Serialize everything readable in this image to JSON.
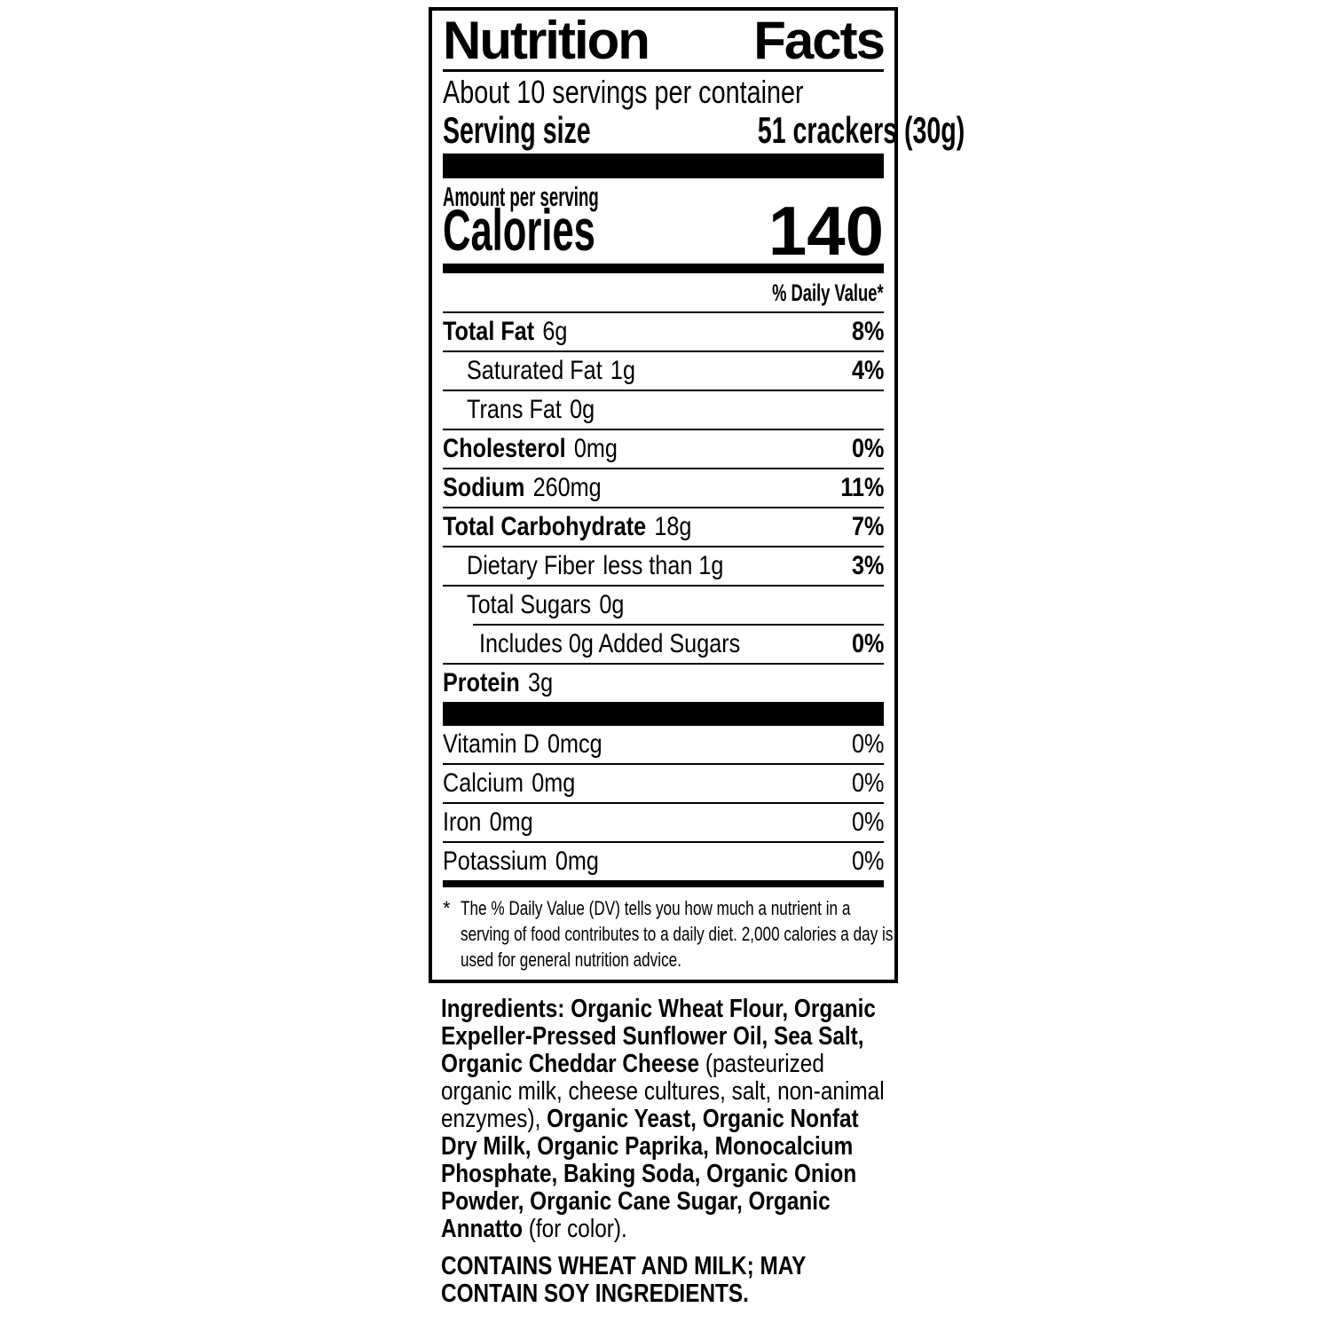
{
  "label": {
    "title_word1": "Nutrition",
    "title_word2": "Facts",
    "servings_per_container": "About 10 servings per container",
    "serving_size_label": "Serving size",
    "serving_size_value": "51 crackers (30g)",
    "amount_per_serving": "Amount per serving",
    "calories_label": "Calories",
    "calories_value": "140",
    "daily_value_header": "% Daily Value*",
    "nutrients": [
      {
        "name": "Total Fat",
        "amount": "6g",
        "dv": "8%",
        "bold": true,
        "indent": 0
      },
      {
        "name": "Saturated Fat",
        "amount": "1g",
        "dv": "4%",
        "bold": false,
        "indent": 1
      },
      {
        "name": "Trans Fat",
        "amount": "0g",
        "dv": "",
        "bold": false,
        "indent": 1
      },
      {
        "name": "Cholesterol",
        "amount": "0mg",
        "dv": "0%",
        "bold": true,
        "indent": 0
      },
      {
        "name": "Sodium",
        "amount": "260mg",
        "dv": "11%",
        "bold": true,
        "indent": 0
      },
      {
        "name": "Total Carbohydrate",
        "amount": "18g",
        "dv": "7%",
        "bold": true,
        "indent": 0
      },
      {
        "name": "Dietary Fiber",
        "amount": "less than 1g",
        "dv": "3%",
        "bold": false,
        "indent": 1
      },
      {
        "name": "Total Sugars",
        "amount": "0g",
        "dv": "",
        "bold": false,
        "indent": 1
      },
      {
        "name": "Includes 0g Added Sugars",
        "amount": "",
        "dv": "0%",
        "bold": false,
        "indent": 2,
        "inset_rule": true
      },
      {
        "name": "Protein",
        "amount": "3g",
        "dv": "",
        "bold": true,
        "indent": 0
      }
    ],
    "micronutrients": [
      {
        "name": "Vitamin D",
        "amount": "0mcg",
        "dv": "0%"
      },
      {
        "name": "Calcium",
        "amount": "0mg",
        "dv": "0%"
      },
      {
        "name": "Iron",
        "amount": "0mg",
        "dv": "0%"
      },
      {
        "name": "Potassium",
        "amount": "0mg",
        "dv": "0%"
      }
    ],
    "footnote_marker": "*",
    "footnote": "The % Daily Value (DV) tells you how much a nutrient in a serving of food contributes to a daily diet. 2,000 calories a day is used for general nutrition advice."
  },
  "ingredients": {
    "segments": [
      {
        "text": "Ingredients: Organic Wheat Flour, Organic Expeller-Pressed Sunflower Oil, Sea Salt, Organic Cheddar Cheese ",
        "bold": true
      },
      {
        "text": "(pasteurized organic milk, cheese cultures, salt, non-animal enzymes), ",
        "bold": false
      },
      {
        "text": "Organic Yeast, Organic Nonfat Dry Milk, Organic Paprika, Monocalcium Phosphate, Baking Soda, Organic Onion Powder, Organic Cane Sugar, Organic Annatto ",
        "bold": true
      },
      {
        "text": "(for color).",
        "bold": false
      }
    ],
    "allergen_statement": "CONTAINS WHEAT AND MILK; MAY CONTAIN SOY INGREDIENTS."
  }
}
